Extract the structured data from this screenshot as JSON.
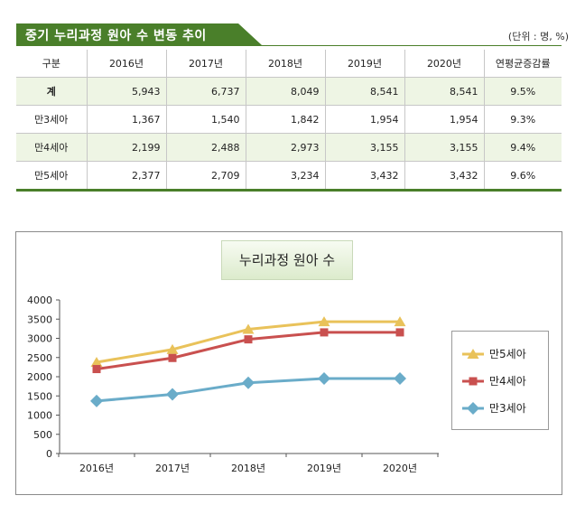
{
  "header": {
    "title": "중기 누리과정 원아 수 변동 추이",
    "unit_note": "(단위 : 명, %)"
  },
  "table": {
    "columns": [
      "구분",
      "2016년",
      "2017년",
      "2018년",
      "2019년",
      "2020년",
      "연평균증감률"
    ],
    "rows": [
      {
        "label": "계",
        "values": [
          "5,943",
          "6,737",
          "8,049",
          "8,541",
          "8,541"
        ],
        "rate": "9.5%"
      },
      {
        "label": "만3세아",
        "values": [
          "1,367",
          "1,540",
          "1,842",
          "1,954",
          "1,954"
        ],
        "rate": "9.3%"
      },
      {
        "label": "만4세아",
        "values": [
          "2,199",
          "2,488",
          "2,973",
          "3,155",
          "3,155"
        ],
        "rate": "9.4%"
      },
      {
        "label": "만5세아",
        "values": [
          "2,377",
          "2,709",
          "3,234",
          "3,432",
          "3,432"
        ],
        "rate": "9.6%"
      }
    ]
  },
  "chart_data": {
    "type": "line",
    "title": "누리과정 원아 수",
    "categories": [
      "2016년",
      "2017년",
      "2018년",
      "2019년",
      "2020년"
    ],
    "ylim": [
      0,
      4000
    ],
    "yticks": [
      0,
      500,
      1000,
      1500,
      2000,
      2500,
      3000,
      3500,
      4000
    ],
    "grid": false,
    "legend_position": "right",
    "series": [
      {
        "name": "만5세아",
        "values": [
          2377,
          2709,
          3234,
          3432,
          3432
        ],
        "color": "#e9c25a",
        "marker": "triangle"
      },
      {
        "name": "만4세아",
        "values": [
          2199,
          2488,
          2973,
          3155,
          3155
        ],
        "color": "#c9504f",
        "marker": "square"
      },
      {
        "name": "만3세아",
        "values": [
          1367,
          1540,
          1842,
          1954,
          1954
        ],
        "color": "#6aacc9",
        "marker": "diamond"
      }
    ]
  }
}
